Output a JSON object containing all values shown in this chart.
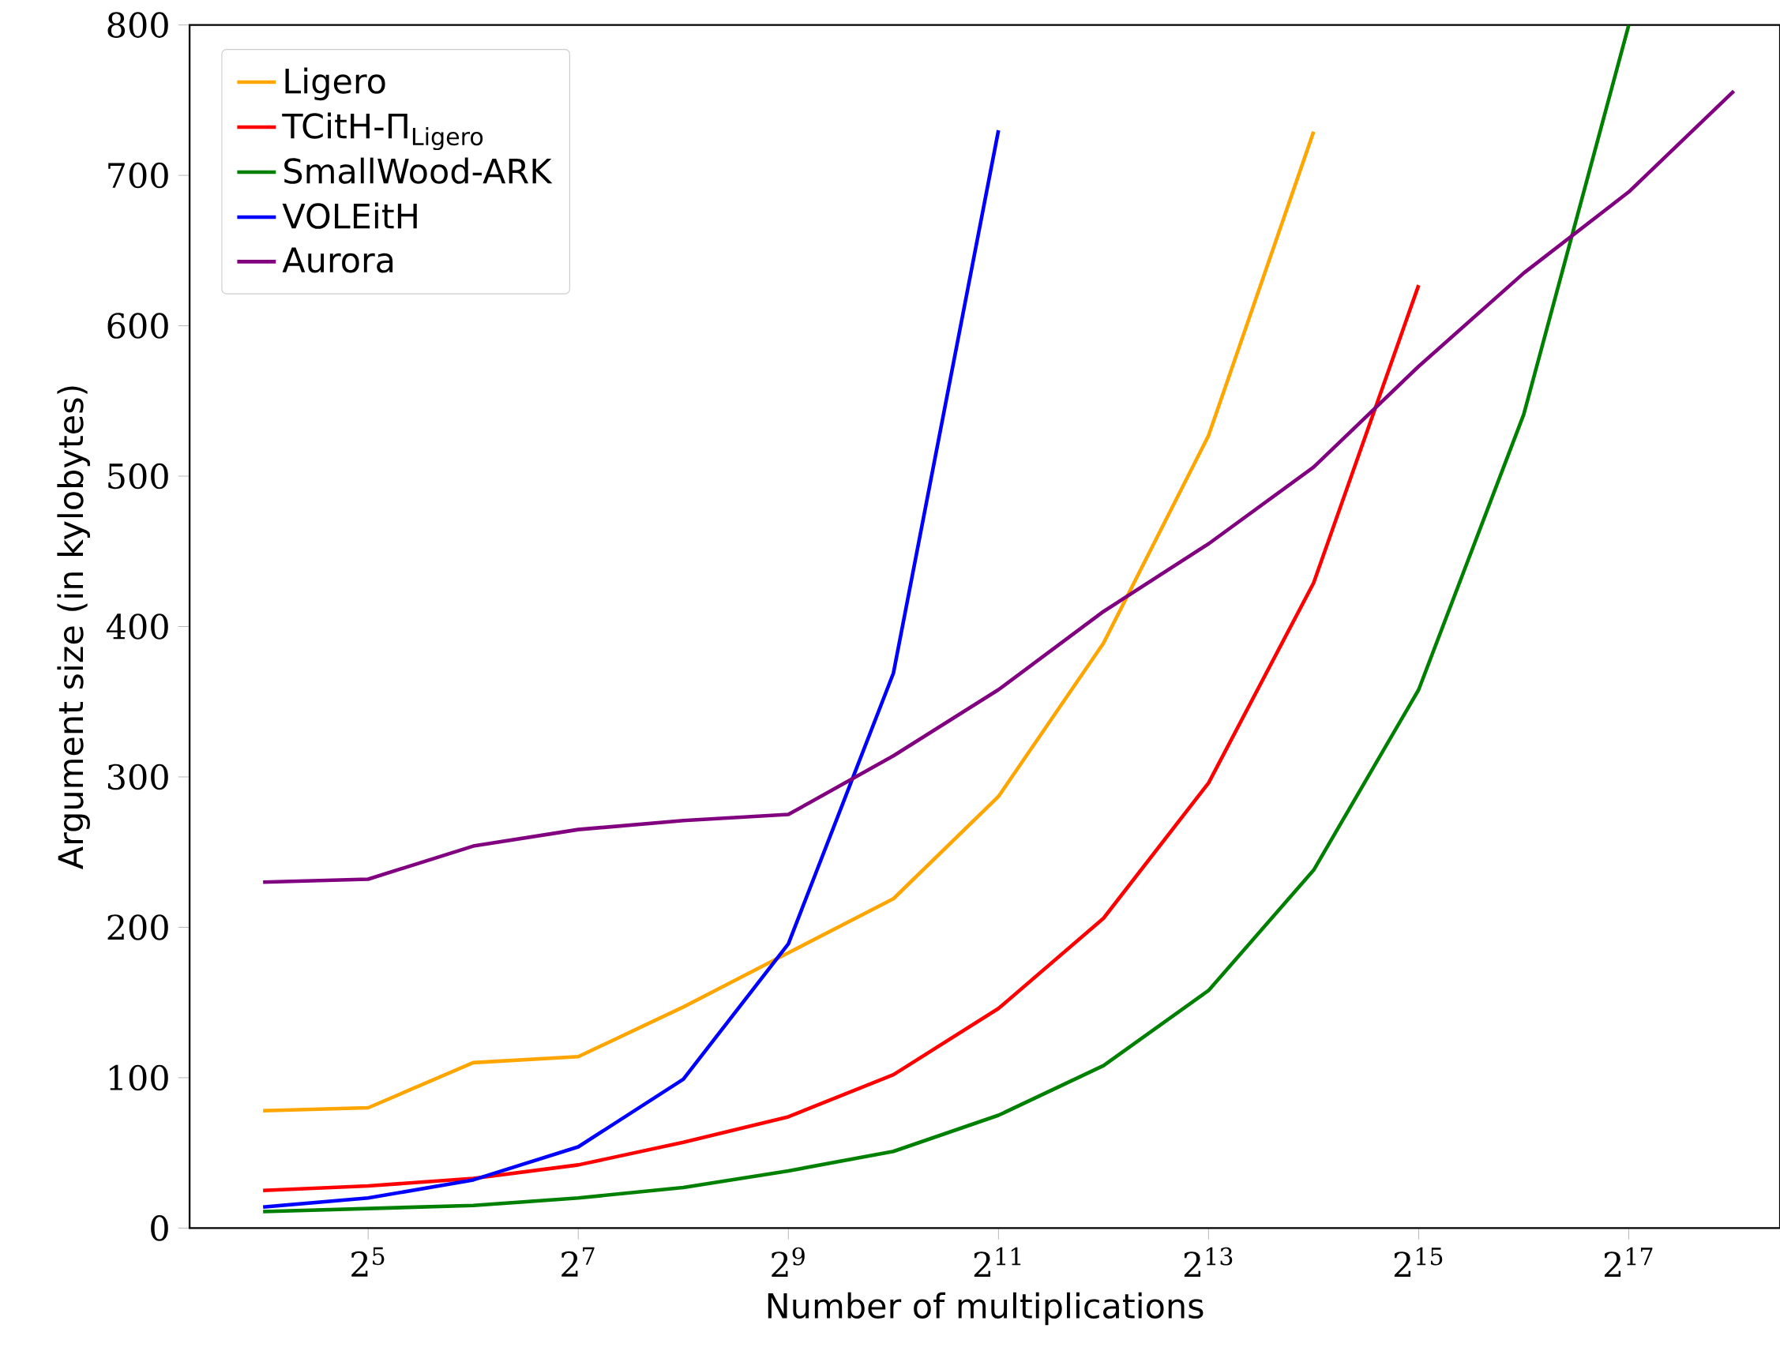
{
  "chart_data": {
    "type": "line",
    "xlabel": "Number of multiplications",
    "ylabel": "Argument size (in kylobytes)",
    "x": [
      16,
      32,
      64,
      128,
      256,
      512,
      1024,
      2048,
      4096,
      8192,
      16384,
      32768,
      65536,
      131072,
      262144
    ],
    "xlim": [
      9.85,
      355600
    ],
    "ylim": [
      0,
      800
    ],
    "log": "x",
    "xticks": [
      {
        "value": 32,
        "label": "2$^{5}$"
      },
      {
        "value": 128,
        "label": "2$^{7}$"
      },
      {
        "value": 512,
        "label": "2$^{9}$"
      },
      {
        "value": 2048,
        "label": "2$^{11}$"
      },
      {
        "value": 8192,
        "label": "2$^{13}$"
      },
      {
        "value": 32768,
        "label": "2$^{15}$"
      },
      {
        "value": 131072,
        "label": "2$^{17}$"
      }
    ],
    "yticks": [
      0,
      100,
      200,
      300,
      400,
      500,
      600,
      700,
      800
    ],
    "legend": "top left",
    "grid": false,
    "marker": "none",
    "line_style": "solid",
    "series": [
      {
        "name": "Ligero",
        "color": "#ffa500",
        "values": [
          78,
          80,
          110,
          114,
          147,
          183,
          219,
          287,
          389,
          527,
          729,
          null,
          null,
          null,
          null
        ]
      },
      {
        "name": "TCitH-Π$_{Ligero}$",
        "color": "#ff0000",
        "values": [
          25,
          28,
          33,
          42,
          57,
          74,
          102,
          146,
          206,
          296,
          429,
          627,
          null,
          null,
          null
        ]
      },
      {
        "name": "SmallWood-ARK",
        "color": "#008000",
        "values": [
          11,
          13,
          15,
          20,
          27,
          38,
          51,
          75,
          108,
          158,
          238,
          358,
          541,
          800,
          null
        ]
      },
      {
        "name": "VOLEitH",
        "color": "#0000ff",
        "values": [
          14,
          20,
          32,
          54,
          99,
          189,
          369,
          730,
          null,
          null,
          null,
          null,
          null,
          null,
          null
        ]
      },
      {
        "name": "Aurora",
        "color": "#800080",
        "values": [
          230,
          232,
          254,
          265,
          271,
          275,
          314,
          358,
          410,
          455,
          506,
          573,
          635,
          689,
          756
        ]
      }
    ]
  }
}
